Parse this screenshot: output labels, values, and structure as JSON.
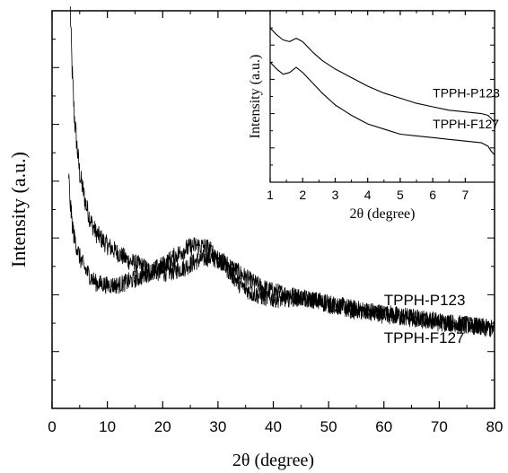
{
  "chart_data": [
    {
      "panel": "main",
      "type": "line",
      "xlabel": "2θ (degree)",
      "ylabel": "Intensity (a.u.)",
      "xlim": [
        0,
        80
      ],
      "ylim": [
        0,
        1
      ],
      "x_ticks": [
        0,
        10,
        20,
        30,
        40,
        50,
        60,
        70,
        80
      ],
      "y_ticks_labeled": false,
      "grid": false,
      "series": [
        {
          "name": "TPPH-P123",
          "color": "#000000",
          "noisy": true,
          "points": [
            [
              3.3,
              1.0
            ],
            [
              3.6,
              0.86
            ],
            [
              4.0,
              0.74
            ],
            [
              4.5,
              0.66
            ],
            [
              5,
              0.59
            ],
            [
              6,
              0.52
            ],
            [
              7,
              0.47
            ],
            [
              8,
              0.44
            ],
            [
              10,
              0.41
            ],
            [
              12,
              0.39
            ],
            [
              14,
              0.37
            ],
            [
              16,
              0.36
            ],
            [
              18,
              0.345
            ],
            [
              20,
              0.34
            ],
            [
              22,
              0.345
            ],
            [
              24,
              0.355
            ],
            [
              26,
              0.37
            ],
            [
              28,
              0.38
            ],
            [
              30,
              0.375
            ],
            [
              32,
              0.36
            ],
            [
              34,
              0.34
            ],
            [
              36,
              0.32
            ],
            [
              38,
              0.305
            ],
            [
              40,
              0.295
            ],
            [
              45,
              0.28
            ],
            [
              50,
              0.265
            ],
            [
              55,
              0.25
            ],
            [
              60,
              0.24
            ],
            [
              65,
              0.23
            ],
            [
              70,
              0.22
            ],
            [
              75,
              0.21
            ],
            [
              80,
              0.2
            ]
          ]
        },
        {
          "name": "TPPH-F127",
          "color": "#000000",
          "noisy": true,
          "points": [
            [
              3.0,
              0.59
            ],
            [
              3.2,
              0.53
            ],
            [
              3.6,
              0.47
            ],
            [
              4,
              0.43
            ],
            [
              5,
              0.38
            ],
            [
              6,
              0.35
            ],
            [
              7,
              0.33
            ],
            [
              8,
              0.315
            ],
            [
              10,
              0.31
            ],
            [
              12,
              0.31
            ],
            [
              14,
              0.32
            ],
            [
              16,
              0.33
            ],
            [
              18,
              0.345
            ],
            [
              20,
              0.36
            ],
            [
              22,
              0.38
            ],
            [
              24,
              0.4
            ],
            [
              26,
              0.41
            ],
            [
              28,
              0.405
            ],
            [
              30,
              0.38
            ],
            [
              32,
              0.345
            ],
            [
              34,
              0.31
            ],
            [
              36,
              0.29
            ],
            [
              38,
              0.28
            ],
            [
              40,
              0.275
            ],
            [
              42,
              0.275
            ],
            [
              44,
              0.278
            ],
            [
              46,
              0.276
            ],
            [
              48,
              0.27
            ],
            [
              50,
              0.26
            ],
            [
              55,
              0.245
            ],
            [
              60,
              0.235
            ],
            [
              65,
              0.225
            ],
            [
              70,
              0.215
            ],
            [
              75,
              0.21
            ],
            [
              80,
              0.2
            ]
          ]
        }
      ],
      "annotations": [
        {
          "text": "TPPH-P123",
          "x": 60,
          "y": 0.26
        },
        {
          "text": "TPPH-F127",
          "x": 60,
          "y": 0.165
        }
      ]
    },
    {
      "panel": "inset",
      "type": "line",
      "xlabel": "2θ (degree)",
      "ylabel": "Intensity (a.u.)",
      "xlim": [
        1,
        7.9
      ],
      "ylim": [
        0,
        1
      ],
      "x_ticks": [
        1,
        2,
        3,
        4,
        5,
        6,
        7
      ],
      "y_ticks_labeled": false,
      "grid": false,
      "series": [
        {
          "name": "TPPH-P123",
          "color": "#000000",
          "points": [
            [
              1.0,
              0.9
            ],
            [
              1.2,
              0.86
            ],
            [
              1.4,
              0.83
            ],
            [
              1.6,
              0.82
            ],
            [
              1.8,
              0.84
            ],
            [
              2.0,
              0.82
            ],
            [
              2.3,
              0.76
            ],
            [
              2.6,
              0.71
            ],
            [
              3.0,
              0.66
            ],
            [
              3.5,
              0.61
            ],
            [
              4.0,
              0.56
            ],
            [
              4.5,
              0.52
            ],
            [
              5.0,
              0.49
            ],
            [
              5.5,
              0.46
            ],
            [
              6.0,
              0.44
            ],
            [
              6.5,
              0.42
            ],
            [
              7.0,
              0.41
            ],
            [
              7.5,
              0.4
            ],
            [
              7.7,
              0.39
            ],
            [
              7.8,
              0.37
            ],
            [
              7.9,
              0.35
            ]
          ]
        },
        {
          "name": "TPPH-F127",
          "color": "#000000",
          "points": [
            [
              1.0,
              0.7
            ],
            [
              1.2,
              0.66
            ],
            [
              1.4,
              0.63
            ],
            [
              1.6,
              0.64
            ],
            [
              1.8,
              0.67
            ],
            [
              2.0,
              0.64
            ],
            [
              2.3,
              0.58
            ],
            [
              2.6,
              0.52
            ],
            [
              3.0,
              0.45
            ],
            [
              3.5,
              0.39
            ],
            [
              4.0,
              0.34
            ],
            [
              4.5,
              0.31
            ],
            [
              5.0,
              0.28
            ],
            [
              5.5,
              0.27
            ],
            [
              6.0,
              0.26
            ],
            [
              6.5,
              0.25
            ],
            [
              7.0,
              0.24
            ],
            [
              7.5,
              0.23
            ],
            [
              7.7,
              0.21
            ],
            [
              7.8,
              0.18
            ],
            [
              7.9,
              0.16
            ]
          ]
        }
      ],
      "annotations": [
        {
          "text": "TPPH-P123",
          "x": 6.0,
          "y": 0.495
        },
        {
          "text": "TPPH-F127",
          "x": 6.0,
          "y": 0.315
        }
      ]
    }
  ]
}
